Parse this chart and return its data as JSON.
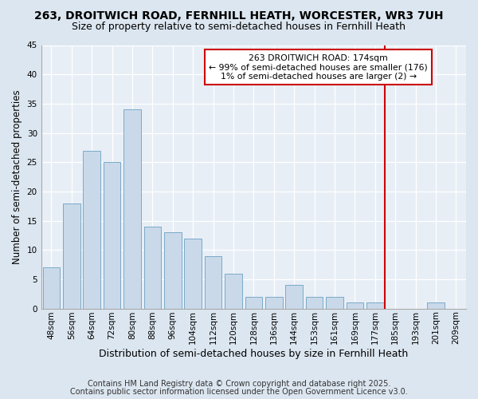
{
  "title1": "263, DROITWICH ROAD, FERNHILL HEATH, WORCESTER, WR3 7UH",
  "title2": "Size of property relative to semi-detached houses in Fernhill Heath",
  "xlabel": "Distribution of semi-detached houses by size in Fernhill Heath",
  "ylabel": "Number of semi-detached properties",
  "categories": [
    "48sqm",
    "56sqm",
    "64sqm",
    "72sqm",
    "80sqm",
    "88sqm",
    "96sqm",
    "104sqm",
    "112sqm",
    "120sqm",
    "128sqm",
    "136sqm",
    "144sqm",
    "153sqm",
    "161sqm",
    "169sqm",
    "177sqm",
    "185sqm",
    "193sqm",
    "201sqm",
    "209sqm"
  ],
  "values": [
    7,
    18,
    27,
    25,
    34,
    14,
    13,
    12,
    9,
    6,
    2,
    2,
    4,
    2,
    2,
    1,
    1,
    0,
    0,
    1,
    0
  ],
  "bar_color": "#c9d9ea",
  "bar_edge_color": "#7aaac8",
  "vline_x": 16.5,
  "vline_color": "#cc0000",
  "annotation_title": "263 DROITWICH ROAD: 174sqm",
  "annotation_line1": "← 99% of semi-detached houses are smaller (176)",
  "annotation_line2": "1% of semi-detached houses are larger (2) →",
  "annotation_box_color": "#ffffff",
  "annotation_box_edge": "#cc0000",
  "ylim": [
    0,
    45
  ],
  "yticks": [
    0,
    5,
    10,
    15,
    20,
    25,
    30,
    35,
    40,
    45
  ],
  "bg_color": "#dce6f0",
  "plot_bg_color": "#e8eef6",
  "footer1": "Contains HM Land Registry data © Crown copyright and database right 2025.",
  "footer2": "Contains public sector information licensed under the Open Government Licence v3.0.",
  "title1_fontsize": 10,
  "title2_fontsize": 9,
  "xlabel_fontsize": 9,
  "ylabel_fontsize": 8.5,
  "tick_fontsize": 7.5,
  "footer_fontsize": 7
}
